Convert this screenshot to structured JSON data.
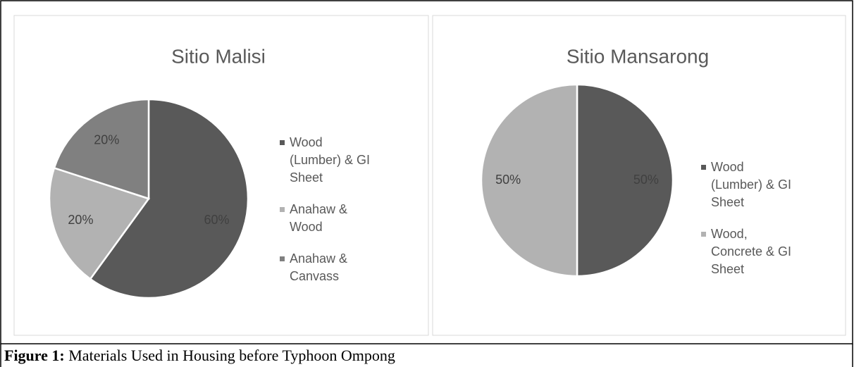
{
  "chart_data": [
    {
      "type": "pie",
      "title": "Sitio Malisi",
      "categories": [
        "Wood (Lumber) & GI Sheet",
        "Anahaw & Wood",
        "Anahaw & Canvass"
      ],
      "values": [
        60,
        20,
        20
      ],
      "value_labels": [
        "60%",
        "20%",
        "20%"
      ],
      "colors": [
        "#595959",
        "#b2b2b2",
        "#808080"
      ],
      "legend": "right"
    },
    {
      "type": "pie",
      "title": "Sitio Mansarong",
      "categories": [
        "Wood (Lumber) & GI Sheet",
        "Wood, Concrete & GI Sheet"
      ],
      "values": [
        50,
        50
      ],
      "value_labels": [
        "50%",
        "50%"
      ],
      "colors": [
        "#595959",
        "#b2b2b2"
      ],
      "legend": "right"
    }
  ],
  "caption": {
    "label": "Figure 1:",
    "text": "Materials Used in Housing before Typhoon Ompong"
  }
}
